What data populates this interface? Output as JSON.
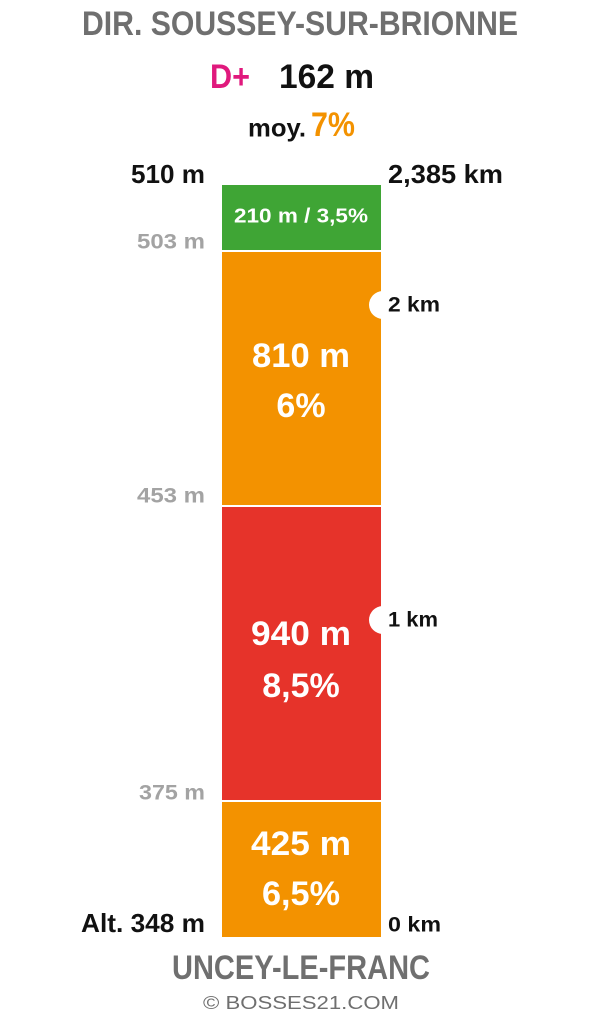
{
  "header": {
    "title": "DIR. SOUSSEY-SUR-BRIONNE",
    "gain_prefix": "D+",
    "gain": "162 m",
    "avg_prefix": "moy.",
    "avg": "7%"
  },
  "altitudes": [
    "510 m",
    "503 m",
    "453 m",
    "375 m",
    "Alt. 348 m"
  ],
  "distances": [
    "2,385 km",
    "2 km",
    "1 km",
    "0 km"
  ],
  "segments": [
    {
      "label": "210 m / 3,5%"
    },
    {
      "length": "810 m",
      "grade": "6%"
    },
    {
      "length": "940 m",
      "grade": "8,5%"
    },
    {
      "length": "425 m",
      "grade": "6,5%"
    }
  ],
  "footer": {
    "start": "UNCEY-LE-FRANC",
    "credit": "© BOSSES21.COM"
  }
}
